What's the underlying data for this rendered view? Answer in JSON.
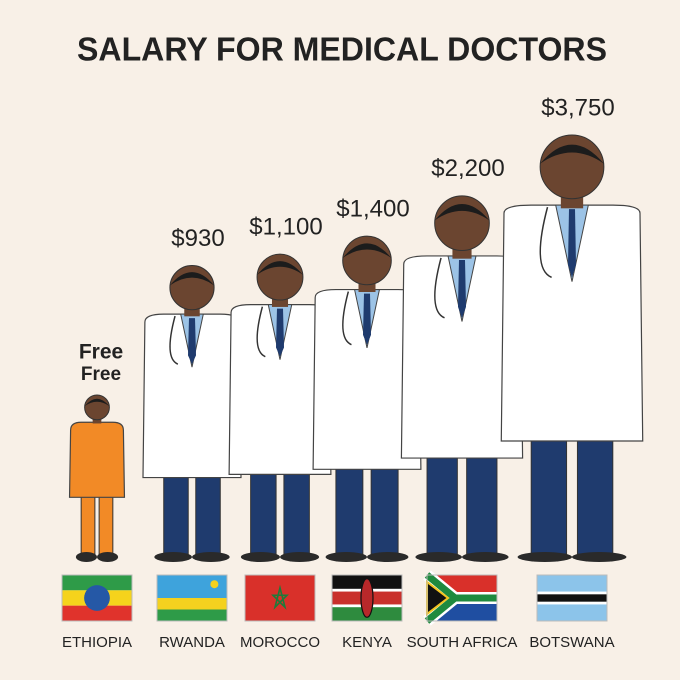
{
  "chart_data": {
    "type": "pictogram",
    "title": "SALARY FOR MEDICAL DOCTORS",
    "categories": [
      "ETHIOPIA",
      "RWANDA",
      "MOROCCO",
      "KENYA",
      "SOUTH AFRICA",
      "BOTSWANA"
    ],
    "values": [
      0,
      930,
      1100,
      1400,
      2200,
      3750
    ],
    "value_labels": [
      "Free",
      "$930",
      "$1,100",
      "$1,400",
      "$2,200",
      "$3,750"
    ],
    "annotation": "Free",
    "colors": [
      "#f28a26",
      "#ffffff",
      "#ffffff",
      "#ffffff",
      "#ffffff",
      "#ffffff"
    ]
  }
}
